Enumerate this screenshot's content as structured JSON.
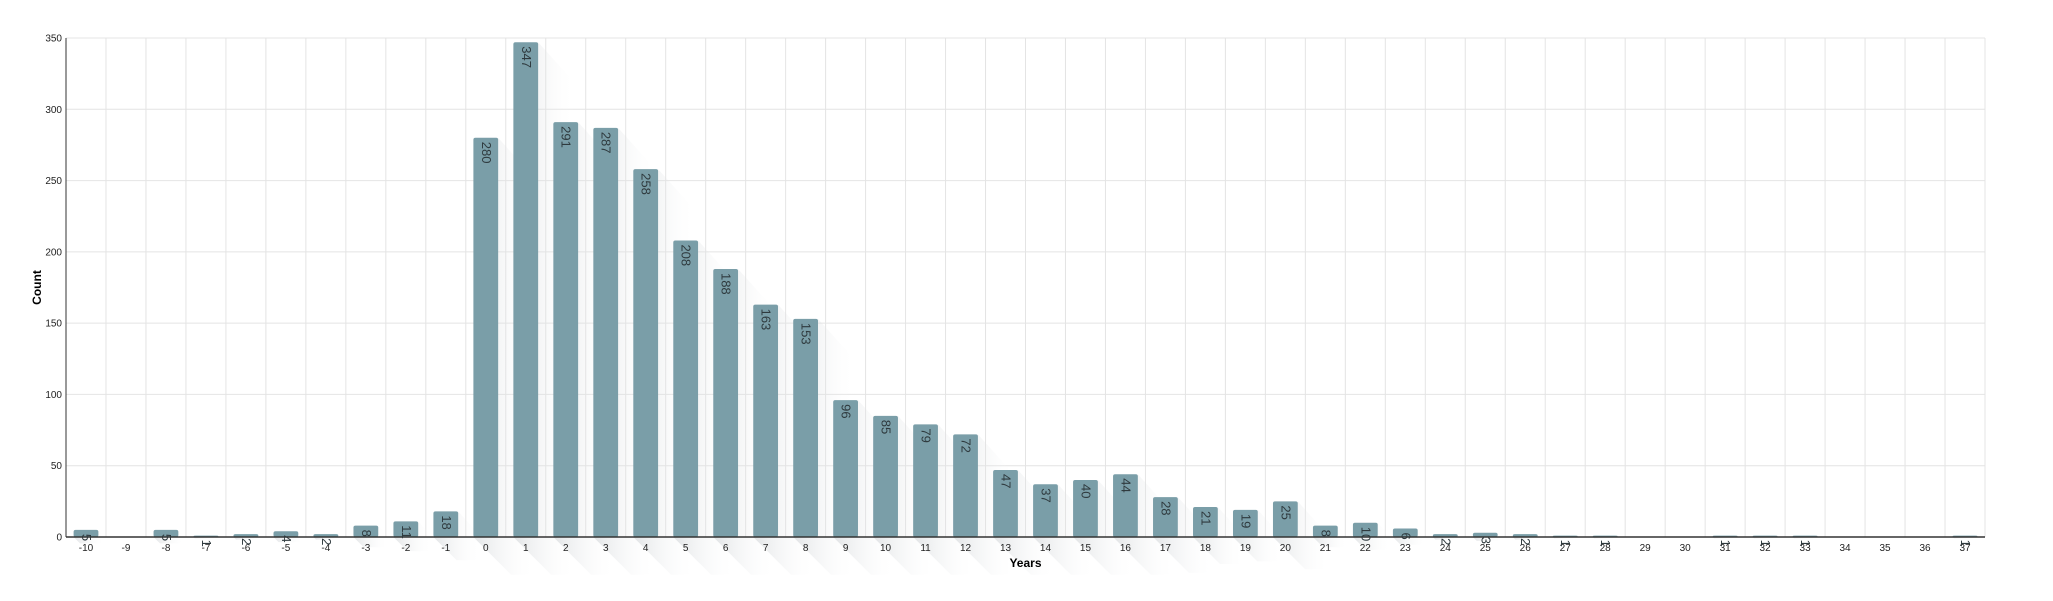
{
  "chart_data": {
    "type": "bar",
    "title": "",
    "xlabel": "Years",
    "ylabel": "Count",
    "ylim": [
      0,
      350
    ],
    "yticks": [
      0,
      50,
      100,
      150,
      200,
      250,
      300,
      350
    ],
    "grid": true,
    "legend": "none",
    "categories": [
      "-10",
      "-9",
      "-8",
      "-7",
      "-6",
      "-5",
      "-4",
      "-3",
      "-2",
      "-1",
      "0",
      "1",
      "2",
      "3",
      "4",
      "5",
      "6",
      "7",
      "8",
      "9",
      "10",
      "11",
      "12",
      "13",
      "14",
      "15",
      "16",
      "17",
      "18",
      "19",
      "20",
      "21",
      "22",
      "23",
      "24",
      "25",
      "26",
      "27",
      "28",
      "29",
      "30",
      "31",
      "32",
      "33",
      "34",
      "35",
      "36",
      "37"
    ],
    "values": [
      5,
      0,
      5,
      1,
      2,
      4,
      2,
      8,
      11,
      18,
      280,
      347,
      291,
      287,
      258,
      208,
      188,
      163,
      153,
      96,
      85,
      79,
      72,
      47,
      37,
      40,
      44,
      28,
      21,
      19,
      25,
      8,
      10,
      6,
      2,
      3,
      2,
      1,
      1,
      0,
      0,
      1,
      1,
      1,
      0,
      0,
      0,
      1
    ],
    "colors": {
      "bar": "#7a9ea8",
      "bar_label": "#2f3a3e",
      "grid": "#e4e4e4",
      "axis": "#333333"
    }
  }
}
